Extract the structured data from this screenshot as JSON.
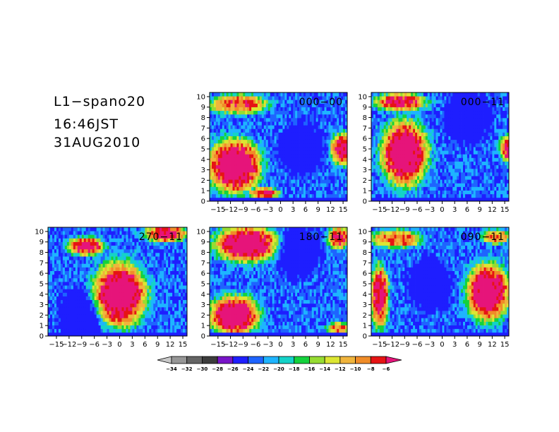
{
  "header": {
    "title": "L1−spano20",
    "time": "16:46JST",
    "date": "31AUG2010"
  },
  "chart_data": {
    "type": "heatmap",
    "x_ticks": [
      "−15",
      "−12",
      "−9",
      "−6",
      "−3",
      "0",
      "3",
      "6",
      "9",
      "12",
      "15"
    ],
    "y_ticks": [
      "0",
      "1",
      "2",
      "3",
      "4",
      "5",
      "6",
      "7",
      "8",
      "9",
      "10"
    ],
    "xlim": [
      -17,
      16
    ],
    "ylim": [
      0,
      10.4
    ],
    "panels": [
      {
        "label": "000−00",
        "hot_region": "left-low",
        "cool_center": [
          5,
          5
        ]
      },
      {
        "label": "000−11",
        "hot_region": "left-mid",
        "cool_center": [
          6,
          8
        ]
      },
      {
        "label": "270−11",
        "hot_region": "center-mid",
        "cool_center": [
          -9,
          2
        ]
      },
      {
        "label": "180−11",
        "hot_region": "left-both",
        "cool_center": [
          4,
          8
        ]
      },
      {
        "label": "090−11",
        "hot_region": "right-mid",
        "cool_center": [
          -3,
          5
        ]
      }
    ],
    "colorbar": {
      "ticks": [
        "−34",
        "−32",
        "−30",
        "−28",
        "−26",
        "−24",
        "−22",
        "−20",
        "−18",
        "−16",
        "−14",
        "−12",
        "−10",
        "−8",
        "−6"
      ],
      "colors": [
        "#c8c8c8",
        "#969696",
        "#646464",
        "#3c3c3c",
        "#7814c8",
        "#1e1eff",
        "#1e64ff",
        "#1eb4ff",
        "#14d2c8",
        "#14d23c",
        "#96dc32",
        "#dce632",
        "#f0b43c",
        "#f08c28",
        "#e61414",
        "#e6147a"
      ]
    }
  }
}
